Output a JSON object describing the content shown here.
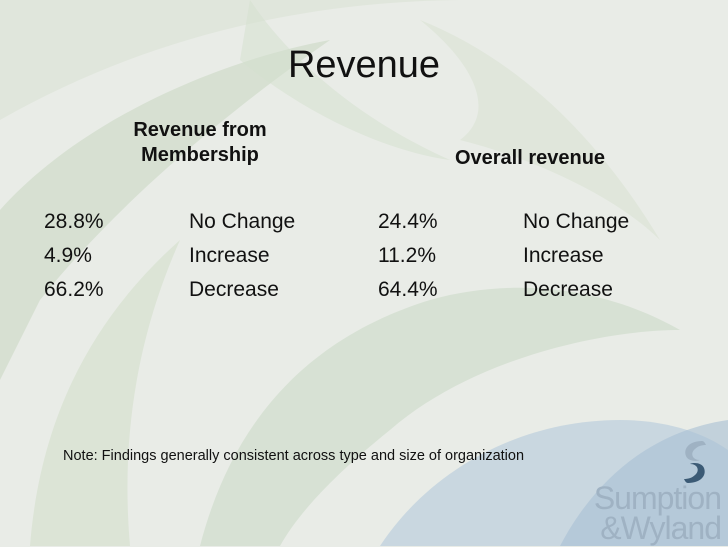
{
  "slide": {
    "title": "Revenue",
    "membership_header": "Revenue from Membership",
    "overall_header": "Overall revenue",
    "membership_rows": [
      {
        "pct": "28.8%",
        "label": "No Change"
      },
      {
        "pct": "4.9%",
        "label": "Increase"
      },
      {
        "pct": "66.2%",
        "label": "Decrease"
      }
    ],
    "overall_rows": [
      {
        "pct": "24.4%",
        "label": "No Change"
      },
      {
        "pct": "11.2%",
        "label": "Increase"
      },
      {
        "pct": "64.4%",
        "label": "Decrease"
      }
    ],
    "note": "Note: Findings generally consistent across type and size of organization"
  },
  "logo": {
    "line1": "Sumption",
    "line2": "&Wyland"
  },
  "colors": {
    "background": "#e9ece7",
    "swoosh_green": "#c6d6bf",
    "swoosh_blue": "#aac3d6",
    "logo_blue": "#9fb2c3"
  }
}
